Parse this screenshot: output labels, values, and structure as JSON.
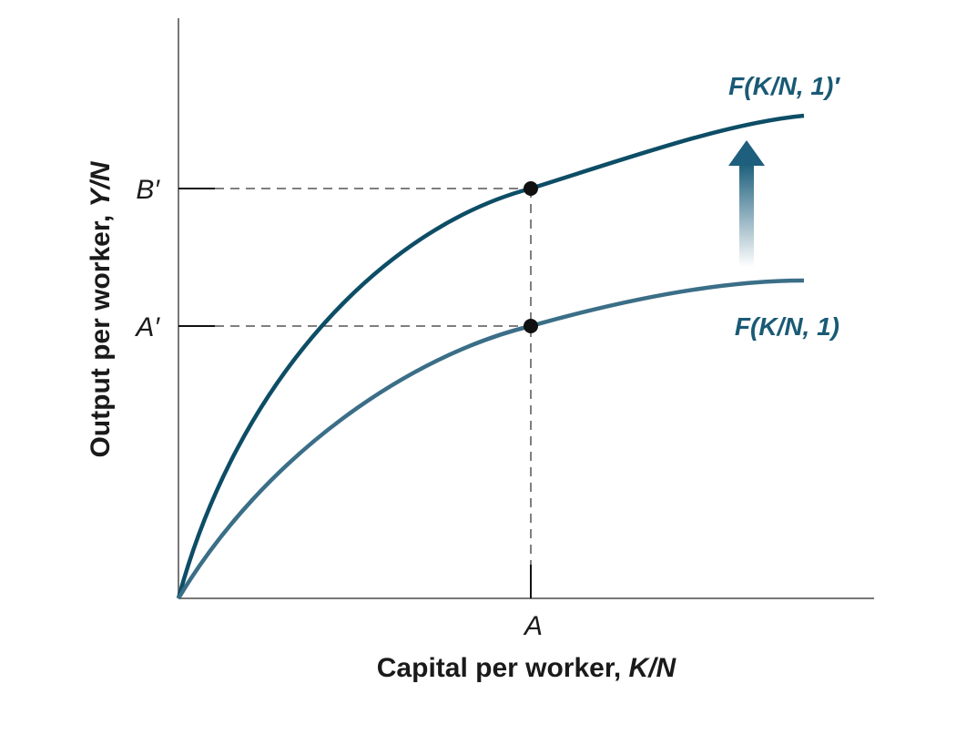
{
  "x_axis": {
    "label": "Capital per worker,",
    "variable": "K/N",
    "tick": "A"
  },
  "y_axis": {
    "label": "Output per worker,",
    "variable": "Y/N",
    "ticks": [
      "B′",
      "A′"
    ]
  },
  "curves": [
    {
      "label": "F(K/N, 1)′"
    },
    {
      "label": "F(K/N, 1)"
    }
  ]
}
